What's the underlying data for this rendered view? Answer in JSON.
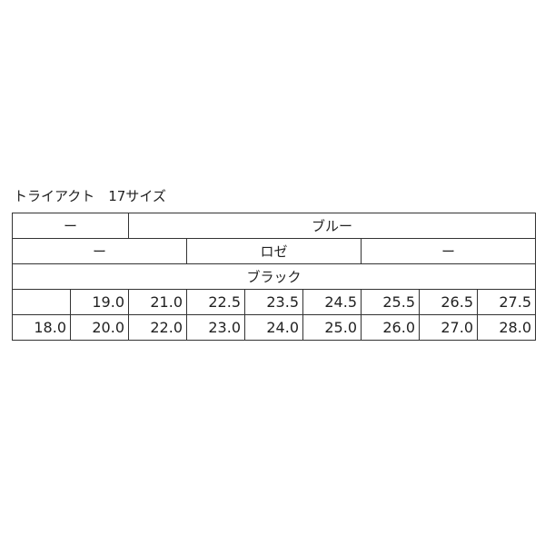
{
  "title": "トライアクト　17サイズ",
  "rows": {
    "r1": [
      "ー",
      "ブルー"
    ],
    "r2": [
      "ー",
      "ロゼ",
      "ー"
    ],
    "r3": [
      "ブラック"
    ],
    "r4": [
      "",
      "19.0",
      "21.0",
      "22.5",
      "23.5",
      "24.5",
      "25.5",
      "26.5",
      "27.5"
    ],
    "r5": [
      "18.0",
      "20.0",
      "22.0",
      "23.0",
      "24.0",
      "25.0",
      "26.0",
      "27.0",
      "28.0"
    ]
  }
}
